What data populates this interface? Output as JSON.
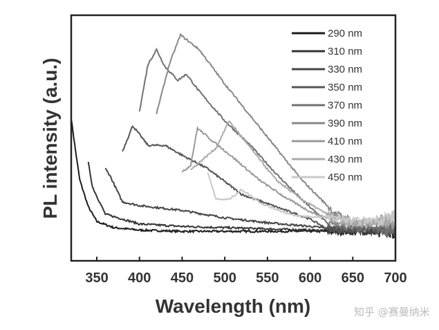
{
  "chart_data": {
    "type": "line",
    "title": "",
    "xlabel": "Wavelength (nm)",
    "ylabel": "PL intensity (a.u.)",
    "xlim": [
      320,
      700
    ],
    "ylim": [
      0,
      1
    ],
    "xticks": [
      350,
      400,
      450,
      500,
      550,
      600,
      650,
      700
    ],
    "grid": false,
    "legend_position": "top-right",
    "series": [
      {
        "name": "290 nm",
        "color": "#1a1a1a",
        "points": [
          [
            320,
            0.58
          ],
          [
            325,
            0.45
          ],
          [
            330,
            0.33
          ],
          [
            340,
            0.22
          ],
          [
            350,
            0.16
          ],
          [
            370,
            0.135
          ],
          [
            400,
            0.125
          ],
          [
            450,
            0.12
          ],
          [
            700,
            0.12
          ]
        ]
      },
      {
        "name": "310 nm",
        "color": "#333333",
        "points": [
          [
            340,
            0.4
          ],
          [
            345,
            0.3
          ],
          [
            360,
            0.19
          ],
          [
            400,
            0.15
          ],
          [
            450,
            0.14
          ],
          [
            500,
            0.135
          ],
          [
            600,
            0.125
          ],
          [
            700,
            0.12
          ]
        ]
      },
      {
        "name": "330 nm",
        "color": "#444444",
        "points": [
          [
            360,
            0.375
          ],
          [
            365,
            0.35
          ],
          [
            380,
            0.24
          ],
          [
            400,
            0.225
          ],
          [
            450,
            0.205
          ],
          [
            500,
            0.175
          ],
          [
            550,
            0.155
          ],
          [
            600,
            0.14
          ],
          [
            640,
            0.125
          ],
          [
            700,
            0.12
          ]
        ]
      },
      {
        "name": "350 nm",
        "color": "#555555",
        "points": [
          [
            380,
            0.445
          ],
          [
            392,
            0.55
          ],
          [
            410,
            0.47
          ],
          [
            430,
            0.47
          ],
          [
            450,
            0.43
          ],
          [
            480,
            0.375
          ],
          [
            520,
            0.27
          ],
          [
            560,
            0.22
          ],
          [
            600,
            0.17
          ],
          [
            620,
            0.13
          ],
          [
            700,
            0.12
          ]
        ]
      },
      {
        "name": "370 nm",
        "color": "#707070",
        "points": [
          [
            400,
            0.61
          ],
          [
            410,
            0.8
          ],
          [
            420,
            0.86
          ],
          [
            430,
            0.79
          ],
          [
            445,
            0.735
          ],
          [
            455,
            0.76
          ],
          [
            470,
            0.69
          ],
          [
            500,
            0.57
          ],
          [
            530,
            0.47
          ],
          [
            560,
            0.355
          ],
          [
            590,
            0.25
          ],
          [
            620,
            0.155
          ],
          [
            650,
            0.13
          ],
          [
            700,
            0.13
          ]
        ]
      },
      {
        "name": "390 nm",
        "color": "#888888",
        "points": [
          [
            420,
            0.6
          ],
          [
            435,
            0.8
          ],
          [
            448,
            0.92
          ],
          [
            470,
            0.86
          ],
          [
            500,
            0.72
          ],
          [
            530,
            0.59
          ],
          [
            560,
            0.46
          ],
          [
            590,
            0.33
          ],
          [
            630,
            0.19
          ],
          [
            660,
            0.15
          ],
          [
            700,
            0.17
          ]
        ]
      },
      {
        "name": "410 nm",
        "color": "#999999",
        "points": [
          [
            450,
            0.36
          ],
          [
            460,
            0.39
          ],
          [
            468,
            0.54
          ],
          [
            485,
            0.49
          ],
          [
            510,
            0.42
          ],
          [
            540,
            0.33
          ],
          [
            570,
            0.26
          ],
          [
            600,
            0.2
          ],
          [
            640,
            0.15
          ],
          [
            700,
            0.16
          ]
        ]
      },
      {
        "name": "430 nm",
        "color": "#aaaaaa",
        "points": [
          [
            460,
            0.37
          ],
          [
            490,
            0.46
          ],
          [
            505,
            0.57
          ],
          [
            530,
            0.46
          ],
          [
            560,
            0.33
          ],
          [
            590,
            0.25
          ],
          [
            620,
            0.19
          ],
          [
            650,
            0.15
          ],
          [
            700,
            0.17
          ]
        ]
      },
      {
        "name": "450 nm",
        "color": "#c8c8c8",
        "points": [
          [
            480,
            0.36
          ],
          [
            490,
            0.25
          ],
          [
            505,
            0.25
          ],
          [
            520,
            0.29
          ],
          [
            545,
            0.23
          ],
          [
            580,
            0.185
          ],
          [
            620,
            0.175
          ],
          [
            660,
            0.16
          ],
          [
            700,
            0.18
          ]
        ]
      }
    ]
  },
  "watermark": {
    "text": "知乎 @赛曼纳米"
  }
}
